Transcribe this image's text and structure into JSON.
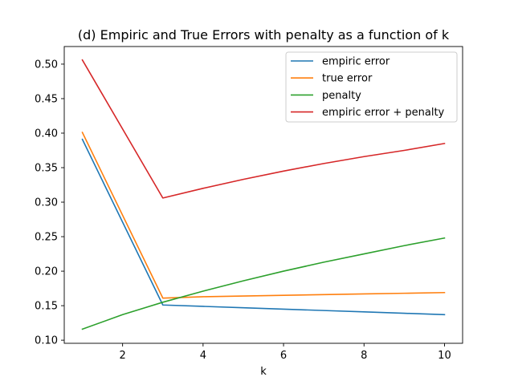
{
  "chart_data": {
    "type": "line",
    "title": "(d) Empiric and True Errors with penalty as a function of k",
    "xlabel": "k",
    "ylabel": "",
    "xlim": [
      0.55,
      10.45
    ],
    "ylim": [
      0.0955,
      0.5255
    ],
    "x_ticks": [
      2,
      4,
      6,
      8,
      10
    ],
    "y_ticks": [
      0.1,
      0.15,
      0.2,
      0.25,
      0.3,
      0.35,
      0.4,
      0.45,
      0.5
    ],
    "grid": false,
    "legend_position": "top-right",
    "series": [
      {
        "name": "empiric error",
        "color": "#1f77b4",
        "x": [
          1,
          3,
          4,
          5,
          6,
          7,
          8,
          9,
          10
        ],
        "y": [
          0.391,
          0.151,
          0.149,
          0.147,
          0.145,
          0.143,
          0.141,
          0.139,
          0.137
        ]
      },
      {
        "name": "true error",
        "color": "#ff7f0e",
        "x": [
          1,
          3,
          4,
          5,
          6,
          7,
          8,
          9,
          10
        ],
        "y": [
          0.401,
          0.161,
          0.163,
          0.164,
          0.165,
          0.166,
          0.167,
          0.168,
          0.169
        ]
      },
      {
        "name": "penalty",
        "color": "#2ca02c",
        "x": [
          1,
          2,
          3,
          4,
          5,
          6,
          7,
          8,
          9,
          10
        ],
        "y": [
          0.116,
          0.137,
          0.155,
          0.171,
          0.186,
          0.2,
          0.213,
          0.225,
          0.237,
          0.248
        ]
      },
      {
        "name": "empiric error + penalty",
        "color": "#d62728",
        "x": [
          1,
          3,
          4,
          5,
          6,
          7,
          8,
          9,
          10
        ],
        "y": [
          0.506,
          0.306,
          0.32,
          0.333,
          0.345,
          0.356,
          0.366,
          0.375,
          0.385
        ]
      }
    ]
  }
}
